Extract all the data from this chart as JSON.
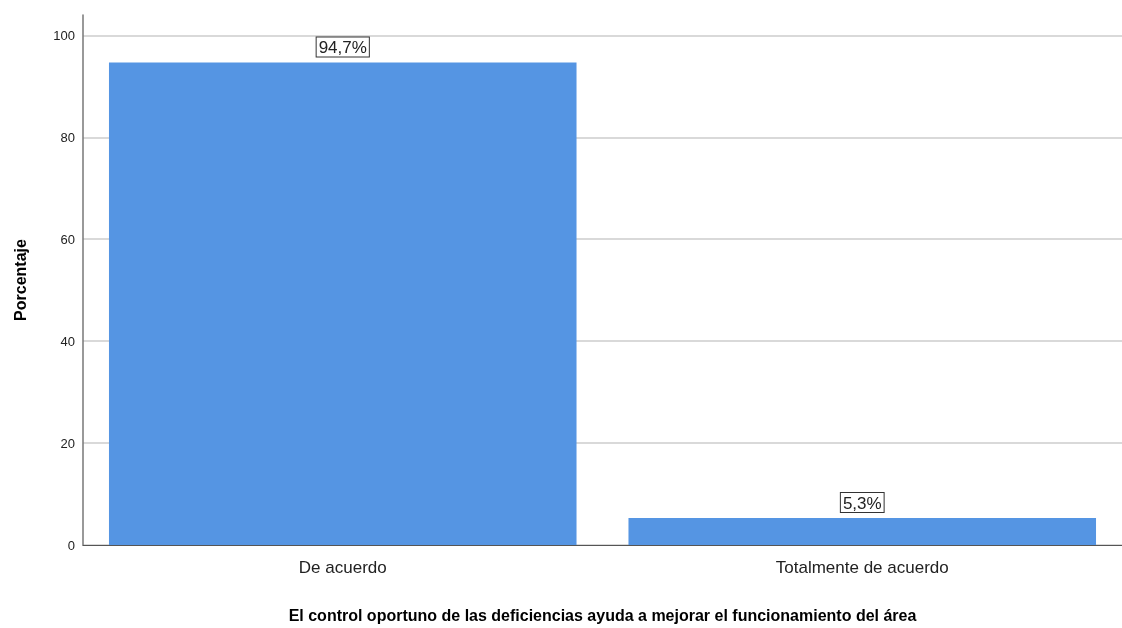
{
  "chart_data": {
    "type": "bar",
    "xlabel": "El control oportuno de las deficiencias ayuda a mejorar el funcionamiento del área",
    "ylabel": "Porcentaje",
    "categories": [
      "De acuerdo",
      "Totalmente de acuerdo"
    ],
    "values": [
      94.7,
      5.3
    ],
    "value_labels": [
      "94,7%",
      "5,3%"
    ],
    "color": "#5595e3",
    "ylim": [
      0,
      104
    ],
    "yticks": [
      0,
      20,
      40,
      60,
      80,
      100
    ],
    "grid": "y"
  }
}
